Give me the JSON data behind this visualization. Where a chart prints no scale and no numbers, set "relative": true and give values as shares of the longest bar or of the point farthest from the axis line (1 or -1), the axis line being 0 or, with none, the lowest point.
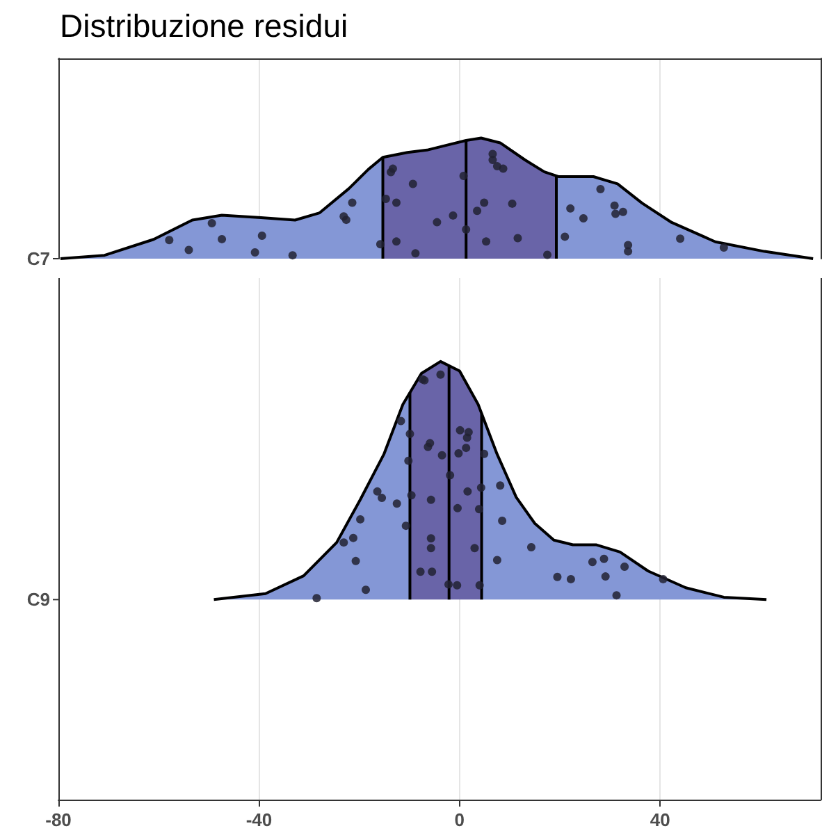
{
  "chart_data": [
    {
      "type": "area",
      "title": "Distribuzione residui",
      "relative": true,
      "xlim": [
        -80,
        72
      ],
      "xticks": [
        -80,
        -40,
        0,
        40
      ],
      "tick_labels": false,
      "grid": "x",
      "ref_lines": [
        {
          "axis": "x",
          "value": -15.3,
          "color": "#000000"
        },
        {
          "axis": "x",
          "value": 1.3,
          "color": "#000000"
        },
        {
          "axis": "x",
          "value": 19.3,
          "color": "#000000"
        }
      ],
      "bands": [
        {
          "axis": "x",
          "from": -15.3,
          "to": 19.3,
          "color": "#6964a8"
        }
      ],
      "series": [
        {
          "name": "C7",
          "color": "#8497d6",
          "x": [
            -79.6,
            -70.8,
            -61.0,
            -53.3,
            -47.4,
            -39.6,
            -32.8,
            -27.9,
            -22.1,
            -18.2,
            -15.3,
            -10.4,
            -6.5,
            -2.6,
            1.3,
            4.3,
            8.1,
            13.0,
            16.9,
            19.8,
            26.7,
            31.5,
            36.4,
            42.3,
            51.0,
            60.8,
            70.5
          ],
          "values": [
            0,
            0.028,
            0.16,
            0.32,
            0.36,
            0.34,
            0.32,
            0.38,
            0.58,
            0.74,
            0.84,
            0.88,
            0.9,
            0.94,
            0.98,
            1,
            0.96,
            0.82,
            0.72,
            0.68,
            0.68,
            0.62,
            0.46,
            0.3,
            0.14,
            0.06,
            0
          ]
        },
        {
          "type": "scatter",
          "color": "#222233",
          "x": [
            -57.9,
            -54.0,
            -49.4,
            -47.4,
            -40.8,
            -39.4,
            -33.3,
            -23.1,
            -22.6,
            -21.4,
            -15.8,
            -14.7,
            -13.7,
            -13.3,
            -12.6,
            -12.6,
            -9.3,
            -8.8,
            -4.5,
            -1.3,
            0.8,
            1.3,
            3.5,
            4.9,
            5.3,
            6.6,
            6.6,
            7.5,
            8.7,
            10.5,
            11.6,
            17.5,
            21.0,
            22.1,
            24.7,
            28.1,
            30.9,
            31.1,
            32.6,
            33.6,
            33.6,
            44.0,
            52.7
          ],
          "values": [
            0.154,
            0.072,
            0.294,
            0.162,
            0.052,
            0.19,
            0.028,
            0.35,
            0.322,
            0.464,
            0.12,
            0.496,
            0.718,
            0.746,
            0.464,
            0.142,
            0.62,
            0.044,
            0.302,
            0.358,
            0.686,
            0.242,
            0.396,
            0.464,
            0.142,
            0.868,
            0.818,
            0.766,
            0.746,
            0.456,
            0.17,
            0.032,
            0.182,
            0.416,
            0.334,
            0.576,
            0.44,
            0.372,
            0.388,
            0.112,
            0.06,
            0.166,
            0.092
          ]
        }
      ]
    },
    {
      "type": "area",
      "relative": true,
      "xlim": [
        -80,
        72
      ],
      "xticks": [
        -80,
        -40,
        0,
        40
      ],
      "tick_labels": "x",
      "grid": "x",
      "ref_lines": [
        {
          "axis": "x",
          "value": -9.9,
          "color": "#000000"
        },
        {
          "axis": "x",
          "value": -2.1,
          "color": "#000000"
        },
        {
          "axis": "x",
          "value": 4.4,
          "color": "#000000"
        }
      ],
      "bands": [
        {
          "axis": "x",
          "from": -9.9,
          "to": 4.4,
          "color": "#6964a8"
        }
      ],
      "series": [
        {
          "name": "C9",
          "color": "#8497d6",
          "x": [
            -49.0,
            -38.7,
            -31.1,
            -24.5,
            -19.8,
            -15.1,
            -11.3,
            -7.6,
            -3.8,
            0,
            3.7,
            7.5,
            11.3,
            15.0,
            18.8,
            22.6,
            27.3,
            32.0,
            37.6,
            45.1,
            52.7,
            61.2
          ],
          "values": [
            0,
            0.025,
            0.1,
            0.24,
            0.42,
            0.61,
            0.82,
            0.95,
            1,
            0.96,
            0.82,
            0.61,
            0.43,
            0.32,
            0.25,
            0.23,
            0.23,
            0.2,
            0.12,
            0.05,
            0.01,
            0
          ]
        },
        {
          "type": "scatter",
          "color": "#222233",
          "x": [
            -28.5,
            -23.1,
            -21.2,
            -20.7,
            -19.8,
            -18.7,
            -16.4,
            -15.5,
            -12.5,
            -11.7,
            -10.7,
            -10.2,
            -9.9,
            -9.6,
            -7.8,
            -7.4,
            -7.0,
            -6.3,
            -5.9,
            -5.7,
            -5.7,
            -5.7,
            -5.5,
            -3.8,
            -3.5,
            -2.2,
            -1.9,
            -0.5,
            -0.4,
            -0.2,
            0.1,
            1.3,
            1.5,
            1.6,
            1.8,
            3.0,
            3.9,
            4.0,
            4.3,
            4.9,
            7.5,
            8.1,
            8.5,
            14.3,
            19.5,
            22.2,
            26.5,
            28.8,
            29.1,
            31.3,
            32.9,
            40.6
          ],
          "values": [
            0.006,
            0.24,
            0.259,
            0.162,
            0.337,
            0.041,
            0.454,
            0.427,
            0.403,
            0.75,
            0.31,
            0.583,
            0.696,
            0.438,
            0.117,
            0.925,
            0.921,
            0.641,
            0.657,
            0.419,
            0.216,
            0.257,
            0.117,
            0.945,
            0.606,
            0.064,
            0.522,
            0.06,
            0.384,
            0.614,
            0.711,
            0.637,
            0.68,
            0.454,
            0.703,
            0.216,
            0.38,
            0.06,
            0.47,
            0.612,
            0.166,
            0.479,
            0.331,
            0.22,
            0.095,
            0.086,
            0.158,
            0.171,
            0.097,
            0.018,
            0.138,
            0.086
          ]
        }
      ]
    }
  ]
}
